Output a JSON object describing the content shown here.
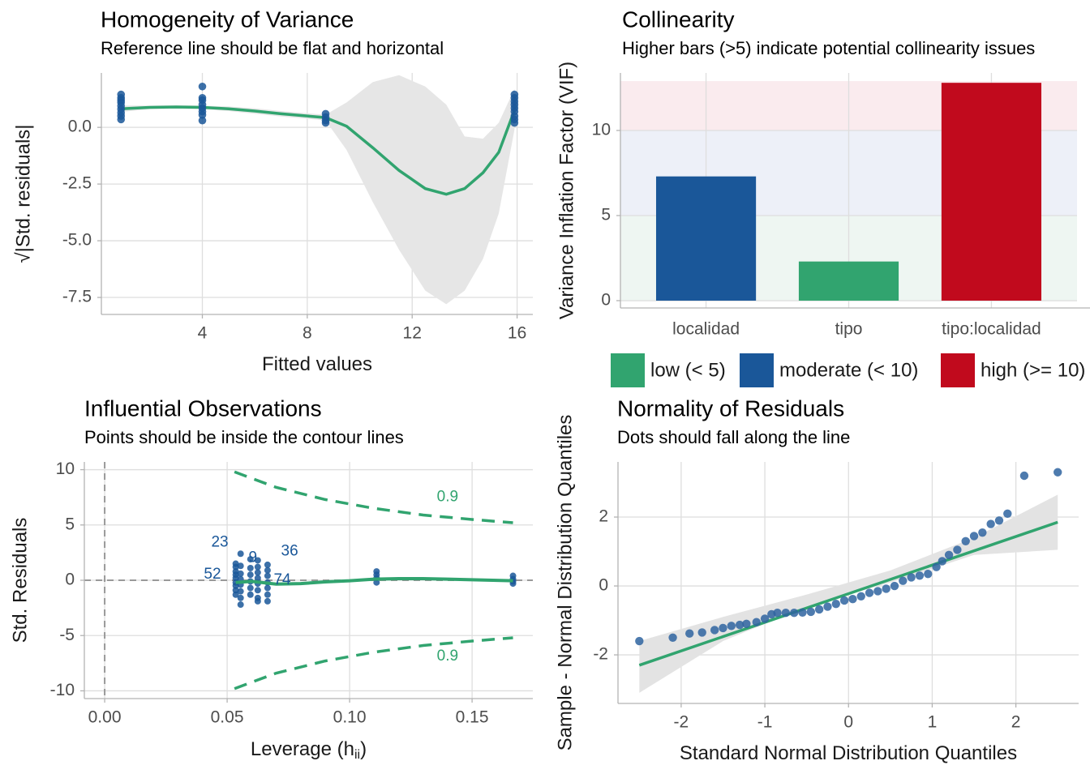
{
  "chart_data": [
    {
      "type": "scatter",
      "title": "Homogeneity of Variance",
      "subtitle": "Reference line should be flat and horizontal",
      "xlabel": [
        "Fitted values"
      ],
      "ylabel": "√|Std. residuals|",
      "xlim": [
        0.15,
        16.6
      ],
      "ylim": [
        -8.25,
        2.4
      ],
      "xticks": [
        4,
        8,
        12,
        16
      ],
      "yticks": [
        {
          "value": 0,
          "label": "0.0"
        },
        -2.5,
        {
          "value": -5,
          "label": "-5.0"
        },
        -7.5
      ],
      "grid": true,
      "point_color": "#1a5799",
      "line_color": "#31a46f",
      "band_color": "#e6e6e6",
      "points": {
        "x": [
          0.9,
          0.9,
          0.9,
          0.9,
          0.9,
          0.9,
          0.9,
          0.9,
          0.9,
          4,
          4,
          4,
          4,
          4,
          4,
          4,
          4,
          8.7,
          8.7,
          8.7,
          8.7,
          15.9,
          15.9,
          15.9,
          15.9,
          15.9,
          15.9,
          15.9,
          15.9,
          15.9
        ],
        "y": [
          1.45,
          1.3,
          1.2,
          1.1,
          0.95,
          0.8,
          0.65,
          0.5,
          0.35,
          1.8,
          1.3,
          1.2,
          1.0,
          0.85,
          0.7,
          0.55,
          0.3,
          0.6,
          0.45,
          0.3,
          0.2,
          1.45,
          1.3,
          1.15,
          1.0,
          0.85,
          0.7,
          0.5,
          0.35,
          0.2
        ]
      },
      "fit": {
        "x": [
          0.9,
          2,
          3,
          4,
          5,
          6,
          7,
          8,
          8.7,
          9.5,
          10.5,
          11.5,
          12.5,
          13.3,
          14,
          14.7,
          15.3,
          15.9
        ],
        "y": [
          0.82,
          0.88,
          0.9,
          0.88,
          0.82,
          0.72,
          0.6,
          0.5,
          0.43,
          0.05,
          -0.9,
          -1.9,
          -2.7,
          -2.95,
          -2.7,
          -2.0,
          -1.1,
          0.75
        ],
        "lower": [
          0.68,
          0.8,
          0.82,
          0.8,
          0.72,
          0.6,
          0.48,
          0.38,
          0.3,
          -1.0,
          -3.3,
          -5.4,
          -7.2,
          -7.8,
          -7.2,
          -5.8,
          -3.8,
          -0.1
        ],
        "upper": [
          0.96,
          0.96,
          0.98,
          0.96,
          0.92,
          0.84,
          0.72,
          0.62,
          0.56,
          1.1,
          2.0,
          2.3,
          1.8,
          1.0,
          -0.4,
          -0.5,
          0.2,
          1.7
        ]
      }
    },
    {
      "type": "bar",
      "title": "Collinearity",
      "subtitle": "Higher bars (>5) indicate potential collinearity issues",
      "ylabel": "Variance Inflation Factor (VIF)",
      "categories": [
        "localidad",
        "tipo",
        "tipo:localidad"
      ],
      "values": [
        7.3,
        2.3,
        12.8
      ],
      "colors": [
        "#1a5799",
        "#31a46f",
        "#c10a1d"
      ],
      "ylim": [
        -0.43,
        13.38
      ],
      "yticks": [
        0,
        5,
        10
      ],
      "grid": true,
      "legend": "bottom",
      "bands": [
        {
          "label": "low (< 5)",
          "from": 0,
          "to": 5,
          "color": "#31a46f",
          "fill": "#eef6f2"
        },
        {
          "label": "moderate (< 10)",
          "from": 5,
          "to": 10,
          "color": "#1a5799",
          "fill": "#edf0f8"
        },
        {
          "label": "high (>= 10)",
          "from": 10,
          "to": 12.9,
          "color": "#c10a1d",
          "fill": "#faebee"
        }
      ]
    },
    {
      "type": "scatter",
      "title": "Influential Observations",
      "subtitle": "Points should be inside the contour lines",
      "xlabel": [
        "Leverage (h",
        "ii",
        ")"
      ],
      "ylabel": "Std. Residuals",
      "xlim": [
        -0.0083,
        0.1748
      ],
      "ylim": [
        -10.7,
        10.7
      ],
      "xticks": [
        {
          "value": 0,
          "label": "0.00"
        },
        0.05,
        {
          "value": 0.1,
          "label": "0.10"
        },
        0.15
      ],
      "yticks": [
        10,
        5,
        0,
        -5,
        -10
      ],
      "grid": true,
      "point_color": "#1a5799",
      "line_color": "#31a46f",
      "reference": {
        "x": 0,
        "y": 0
      },
      "points": {
        "x": [
          0.0535,
          0.0535,
          0.0535,
          0.0535,
          0.0535,
          0.0535,
          0.0535,
          0.0535,
          0.0535,
          0.0555,
          0.0555,
          0.0555,
          0.0555,
          0.0555,
          0.0555,
          0.0555,
          0.0555,
          0.0595,
          0.0595,
          0.0595,
          0.0595,
          0.0595,
          0.0595,
          0.0625,
          0.0625,
          0.0625,
          0.0625,
          0.0625,
          0.0625,
          0.0625,
          0.0625,
          0.0665,
          0.0665,
          0.0665,
          0.0665,
          0.0665,
          0.0665,
          0.0665,
          0.111,
          0.111,
          0.111,
          0.111,
          0.1667,
          0.1667,
          0.1667,
          0.1667
        ],
        "y": [
          1.5,
          1.2,
          0.8,
          0.5,
          0.2,
          -0.2,
          -0.5,
          -0.9,
          -1.3,
          2.4,
          1.3,
          0.6,
          0.1,
          -0.4,
          -1.0,
          -1.6,
          -2.2,
          1.9,
          1.1,
          0.5,
          -0.1,
          -0.7,
          -1.3,
          1.8,
          1.2,
          0.7,
          0.2,
          -0.3,
          -0.9,
          -1.6,
          -1.9,
          1.4,
          0.9,
          0.4,
          -0.2,
          -0.7,
          -1.3,
          -1.9,
          0.8,
          0.5,
          0.2,
          -0.2,
          0.4,
          0.1,
          -0.1,
          -0.3
        ]
      },
      "point_labels": [
        {
          "text": "23",
          "x": 0.047,
          "y": 3.4
        },
        {
          "text": "9",
          "x": 0.0605,
          "y": 2.0
        },
        {
          "text": "36",
          "x": 0.0755,
          "y": 2.6
        },
        {
          "text": "52",
          "x": 0.044,
          "y": 0.5
        },
        {
          "text": "74",
          "x": 0.0725,
          "y": 0
        }
      ],
      "fit": {
        "x": [
          0.0535,
          0.06,
          0.07,
          0.08,
          0.09,
          0.1,
          0.11,
          0.12,
          0.13,
          0.14,
          0.15,
          0.1667
        ],
        "y": [
          -0.2,
          -0.1,
          -0.35,
          -0.3,
          -0.15,
          -0.05,
          0.1,
          0.15,
          0.15,
          0.1,
          0.05,
          -0.05
        ]
      },
      "contours": [
        {
          "x": [
            0.053,
            0.07,
            0.09,
            0.11,
            0.13,
            0.15,
            0.1667
          ],
          "y": [
            9.8,
            8.4,
            7.3,
            6.5,
            5.9,
            5.5,
            5.2
          ]
        },
        {
          "x": [
            0.053,
            0.07,
            0.09,
            0.11,
            0.13,
            0.15,
            0.1667
          ],
          "y": [
            -9.8,
            -8.4,
            -7.3,
            -6.5,
            -5.9,
            -5.5,
            -5.2
          ]
        }
      ],
      "contour_labels": [
        {
          "text": "0.9",
          "x": 0.14,
          "y": 7.5
        },
        {
          "text": "0.9",
          "x": 0.14,
          "y": -6.9
        }
      ]
    },
    {
      "type": "scatter",
      "title": "Normality of Residuals",
      "subtitle": "Dots should fall along the line",
      "xlabel": [
        "Standard Normal Distribution Quantiles"
      ],
      "ylabel": "Sample - Normal Distribution Quantiles",
      "xlim": [
        -2.755,
        2.75
      ],
      "ylim": [
        -3.41,
        3.6
      ],
      "xticks": [
        -2,
        -1,
        0,
        1,
        2
      ],
      "yticks": [
        2,
        0,
        -2
      ],
      "grid": true,
      "point_color": "#2f64a0",
      "line_color": "#31a46f",
      "band_color": "#e3e3e3",
      "points": {
        "x": [
          -2.5,
          -2.1,
          -1.9,
          -1.75,
          -1.6,
          -1.5,
          -1.4,
          -1.3,
          -1.22,
          -1.1,
          -1.0,
          -0.92,
          -0.85,
          -0.75,
          -0.65,
          -0.55,
          -0.45,
          -0.35,
          -0.25,
          -0.15,
          -0.05,
          0.05,
          0.15,
          0.25,
          0.35,
          0.45,
          0.55,
          0.65,
          0.75,
          0.85,
          0.95,
          1.05,
          1.12,
          1.2,
          1.3,
          1.4,
          1.5,
          1.6,
          1.7,
          1.8,
          1.9,
          2.1,
          2.5
        ],
        "y": [
          -1.6,
          -1.5,
          -1.38,
          -1.35,
          -1.28,
          -1.22,
          -1.16,
          -1.13,
          -1.1,
          -1.05,
          -0.95,
          -0.82,
          -0.78,
          -0.78,
          -0.78,
          -0.77,
          -0.75,
          -0.68,
          -0.6,
          -0.52,
          -0.42,
          -0.38,
          -0.3,
          -0.2,
          -0.15,
          -0.08,
          0.0,
          0.15,
          0.25,
          0.3,
          0.35,
          0.55,
          0.72,
          0.9,
          1.05,
          1.3,
          1.45,
          1.55,
          1.8,
          1.9,
          2.1,
          3.2,
          3.3
        ]
      },
      "fit": {
        "x": [
          -2.5,
          2.5
        ],
        "y": [
          -2.3,
          1.85
        ]
      },
      "band": {
        "x": [
          -2.5,
          -1.5,
          -0.5,
          0.5,
          1.5,
          2.5
        ],
        "lower": [
          -3.1,
          -1.6,
          -0.6,
          0.1,
          0.9,
          1.05
        ],
        "upper": [
          -1.6,
          -0.9,
          -0.25,
          0.45,
          1.4,
          2.65
        ]
      }
    }
  ]
}
